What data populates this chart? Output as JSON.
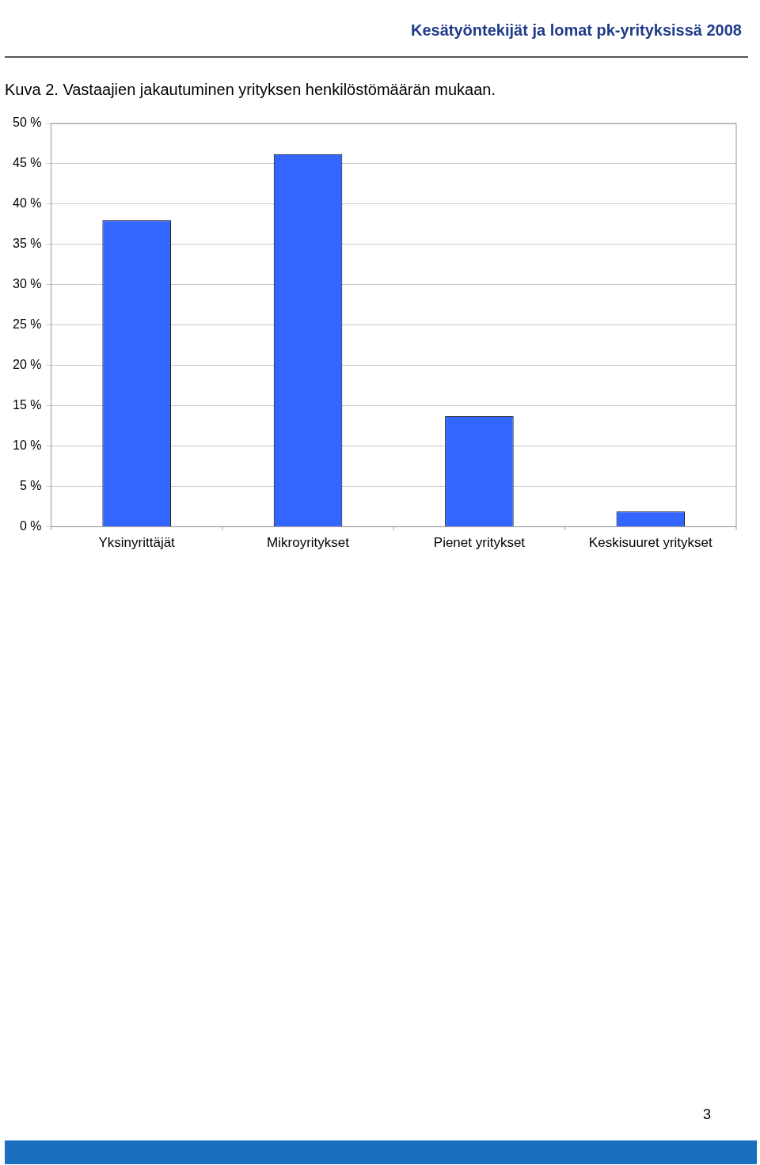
{
  "chart_data": {
    "type": "bar",
    "title": "Kuva 2. Vastaajien jakautuminen yrityksen henkilöstömäärän mukaan.",
    "categories": [
      "Yksinyrittäjät",
      "Mikroyritykset",
      "Pienet yritykset",
      "Keskisuuret yritykset"
    ],
    "values": [
      38.0,
      46.2,
      13.7,
      1.9
    ],
    "color": "#3366ff",
    "ylim": [
      0,
      50
    ],
    "yticks": [
      {
        "value": 0,
        "label": "0 %"
      },
      {
        "value": 5,
        "label": "5 %"
      },
      {
        "value": 10,
        "label": "10 %"
      },
      {
        "value": 15,
        "label": "15 %"
      },
      {
        "value": 20,
        "label": "20 %"
      },
      {
        "value": 25,
        "label": "25 %"
      },
      {
        "value": 30,
        "label": "30 %"
      },
      {
        "value": 35,
        "label": "35 %"
      },
      {
        "value": 40,
        "label": "40 %"
      },
      {
        "value": 45,
        "label": "45 %"
      },
      {
        "value": 50,
        "label": "50 %"
      }
    ],
    "grid": "y",
    "annotations": [
      "Kesätyöntekijät ja lomat pk-yrityksissä 2008",
      "3"
    ]
  }
}
